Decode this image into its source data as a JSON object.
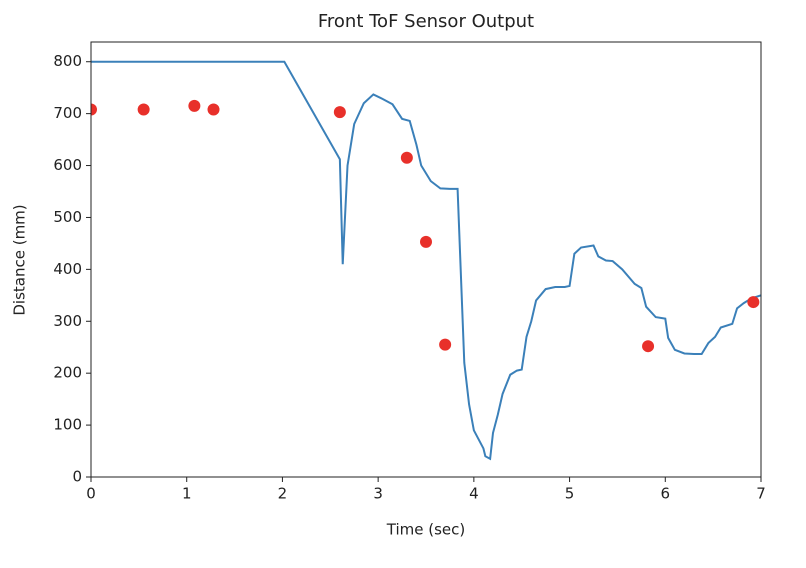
{
  "chart_data": {
    "type": "line",
    "title": "Front ToF Sensor Output",
    "x_label": "Time (sec)",
    "y_label": "Distance (mm)",
    "xlim": [
      0,
      7
    ],
    "xticks": [
      0,
      1,
      2,
      3,
      4,
      5,
      6,
      7
    ],
    "ylim": [
      0,
      838
    ],
    "yticks": [
      0,
      100,
      200,
      300,
      400,
      500,
      600,
      700,
      800
    ],
    "grid": false,
    "series": [
      {
        "type": "line",
        "color": "#3b80b9",
        "x": [
          0,
          2.02,
          2.6,
          2.63,
          2.68,
          2.75,
          2.85,
          2.95,
          3.05,
          3.15,
          3.25,
          3.33,
          3.4,
          3.45,
          3.55,
          3.65,
          3.75,
          3.83,
          3.9,
          3.95,
          4.0,
          4.1,
          4.12,
          4.17,
          4.2,
          4.25,
          4.3,
          4.38,
          4.45,
          4.5,
          4.55,
          4.6,
          4.65,
          4.75,
          4.85,
          4.95,
          5.0,
          5.05,
          5.12,
          5.25,
          5.3,
          5.38,
          5.45,
          5.55,
          5.68,
          5.75,
          5.8,
          5.9,
          6.0,
          6.03,
          6.1,
          6.2,
          6.3,
          6.38,
          6.45,
          6.52,
          6.58,
          6.7,
          6.75,
          6.82,
          6.9,
          7
        ],
        "values": [
          800,
          800,
          612,
          410,
          600,
          680,
          720,
          737,
          728,
          718,
          690,
          686,
          640,
          600,
          570,
          556,
          555,
          555,
          220,
          140,
          90,
          55,
          40,
          35,
          85,
          120,
          160,
          197,
          205,
          207,
          270,
          300,
          340,
          362,
          366,
          366,
          368,
          430,
          442,
          446,
          425,
          417,
          416,
          400,
          372,
          364,
          328,
          308,
          305,
          268,
          245,
          238,
          237,
          237,
          258,
          270,
          288,
          295,
          325,
          335,
          344,
          350
        ]
      },
      {
        "type": "scatter",
        "color": "#e8302a",
        "x": [
          0,
          0.55,
          1.08,
          1.28,
          2.6,
          3.3,
          3.5,
          3.7,
          5.82,
          6.92
        ],
        "values": [
          708,
          708,
          715,
          708,
          703,
          615,
          453,
          255,
          252,
          337
        ]
      }
    ]
  }
}
